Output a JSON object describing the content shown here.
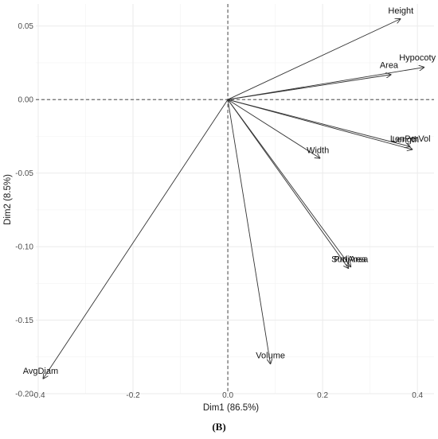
{
  "chart_data": {
    "type": "scatter",
    "title": "",
    "xlabel": "Dim1 (86.5%)",
    "ylabel": "Dim2 (8.5%)",
    "xlim": [
      -0.405,
      0.435
    ],
    "ylim": [
      -0.2,
      0.065
    ],
    "x_ticks": [
      -0.4,
      -0.2,
      0.0,
      0.2,
      0.4
    ],
    "x_tick_labels": [
      "-0.4",
      "-0.2",
      "0.0",
      "0.2",
      "0.4"
    ],
    "y_ticks": [
      0.05,
      0.0,
      -0.05,
      -0.1,
      -0.15,
      -0.2
    ],
    "y_tick_labels": [
      "0.05",
      "0.00",
      "-0.05",
      "-0.10",
      "-0.15",
      "-0.20"
    ],
    "grid": true,
    "reference_lines": {
      "x": 0,
      "y": 0
    },
    "variables": [
      {
        "name": "Height",
        "x": 0.365,
        "y": 0.055
      },
      {
        "name": "Hypocoty",
        "x": 0.415,
        "y": 0.022
      },
      {
        "name": "Area",
        "x": 0.345,
        "y": 0.017
      },
      {
        "name": "LenPerVol",
        "x": 0.39,
        "y": -0.034
      },
      {
        "name": "Length",
        "x": 0.385,
        "y": -0.032
      },
      {
        "name": "Width",
        "x": 0.195,
        "y": -0.04
      },
      {
        "name": "SurfArea",
        "x": 0.255,
        "y": -0.115
      },
      {
        "name": "ProjArea",
        "x": 0.26,
        "y": -0.114
      },
      {
        "name": "Volume",
        "x": 0.09,
        "y": -0.18
      },
      {
        "name": "AvgDiam",
        "x": -0.39,
        "y": -0.19
      }
    ],
    "labels": [
      {
        "text": "Height",
        "x": 0.365,
        "y": 0.0585
      },
      {
        "text": "Hypocoty",
        "x": 0.4,
        "y": 0.0265
      },
      {
        "text": "Area",
        "x": 0.34,
        "y": 0.0215
      },
      {
        "text": "LenPerVol",
        "x": 0.385,
        "y": -0.0285
      },
      {
        "text": "Length",
        "x": 0.375,
        "y": -0.029
      },
      {
        "text": "Width",
        "x": 0.19,
        "y": -0.0365
      },
      {
        "text": "SurfArea",
        "x": 0.255,
        "y": -0.1105
      },
      {
        "text": "ProjArea",
        "x": 0.26,
        "y": -0.1105
      },
      {
        "text": "Volume",
        "x": 0.09,
        "y": -0.176
      },
      {
        "text": "AvgDiam",
        "x": -0.395,
        "y": -0.1865
      }
    ]
  },
  "caption": "(B)"
}
